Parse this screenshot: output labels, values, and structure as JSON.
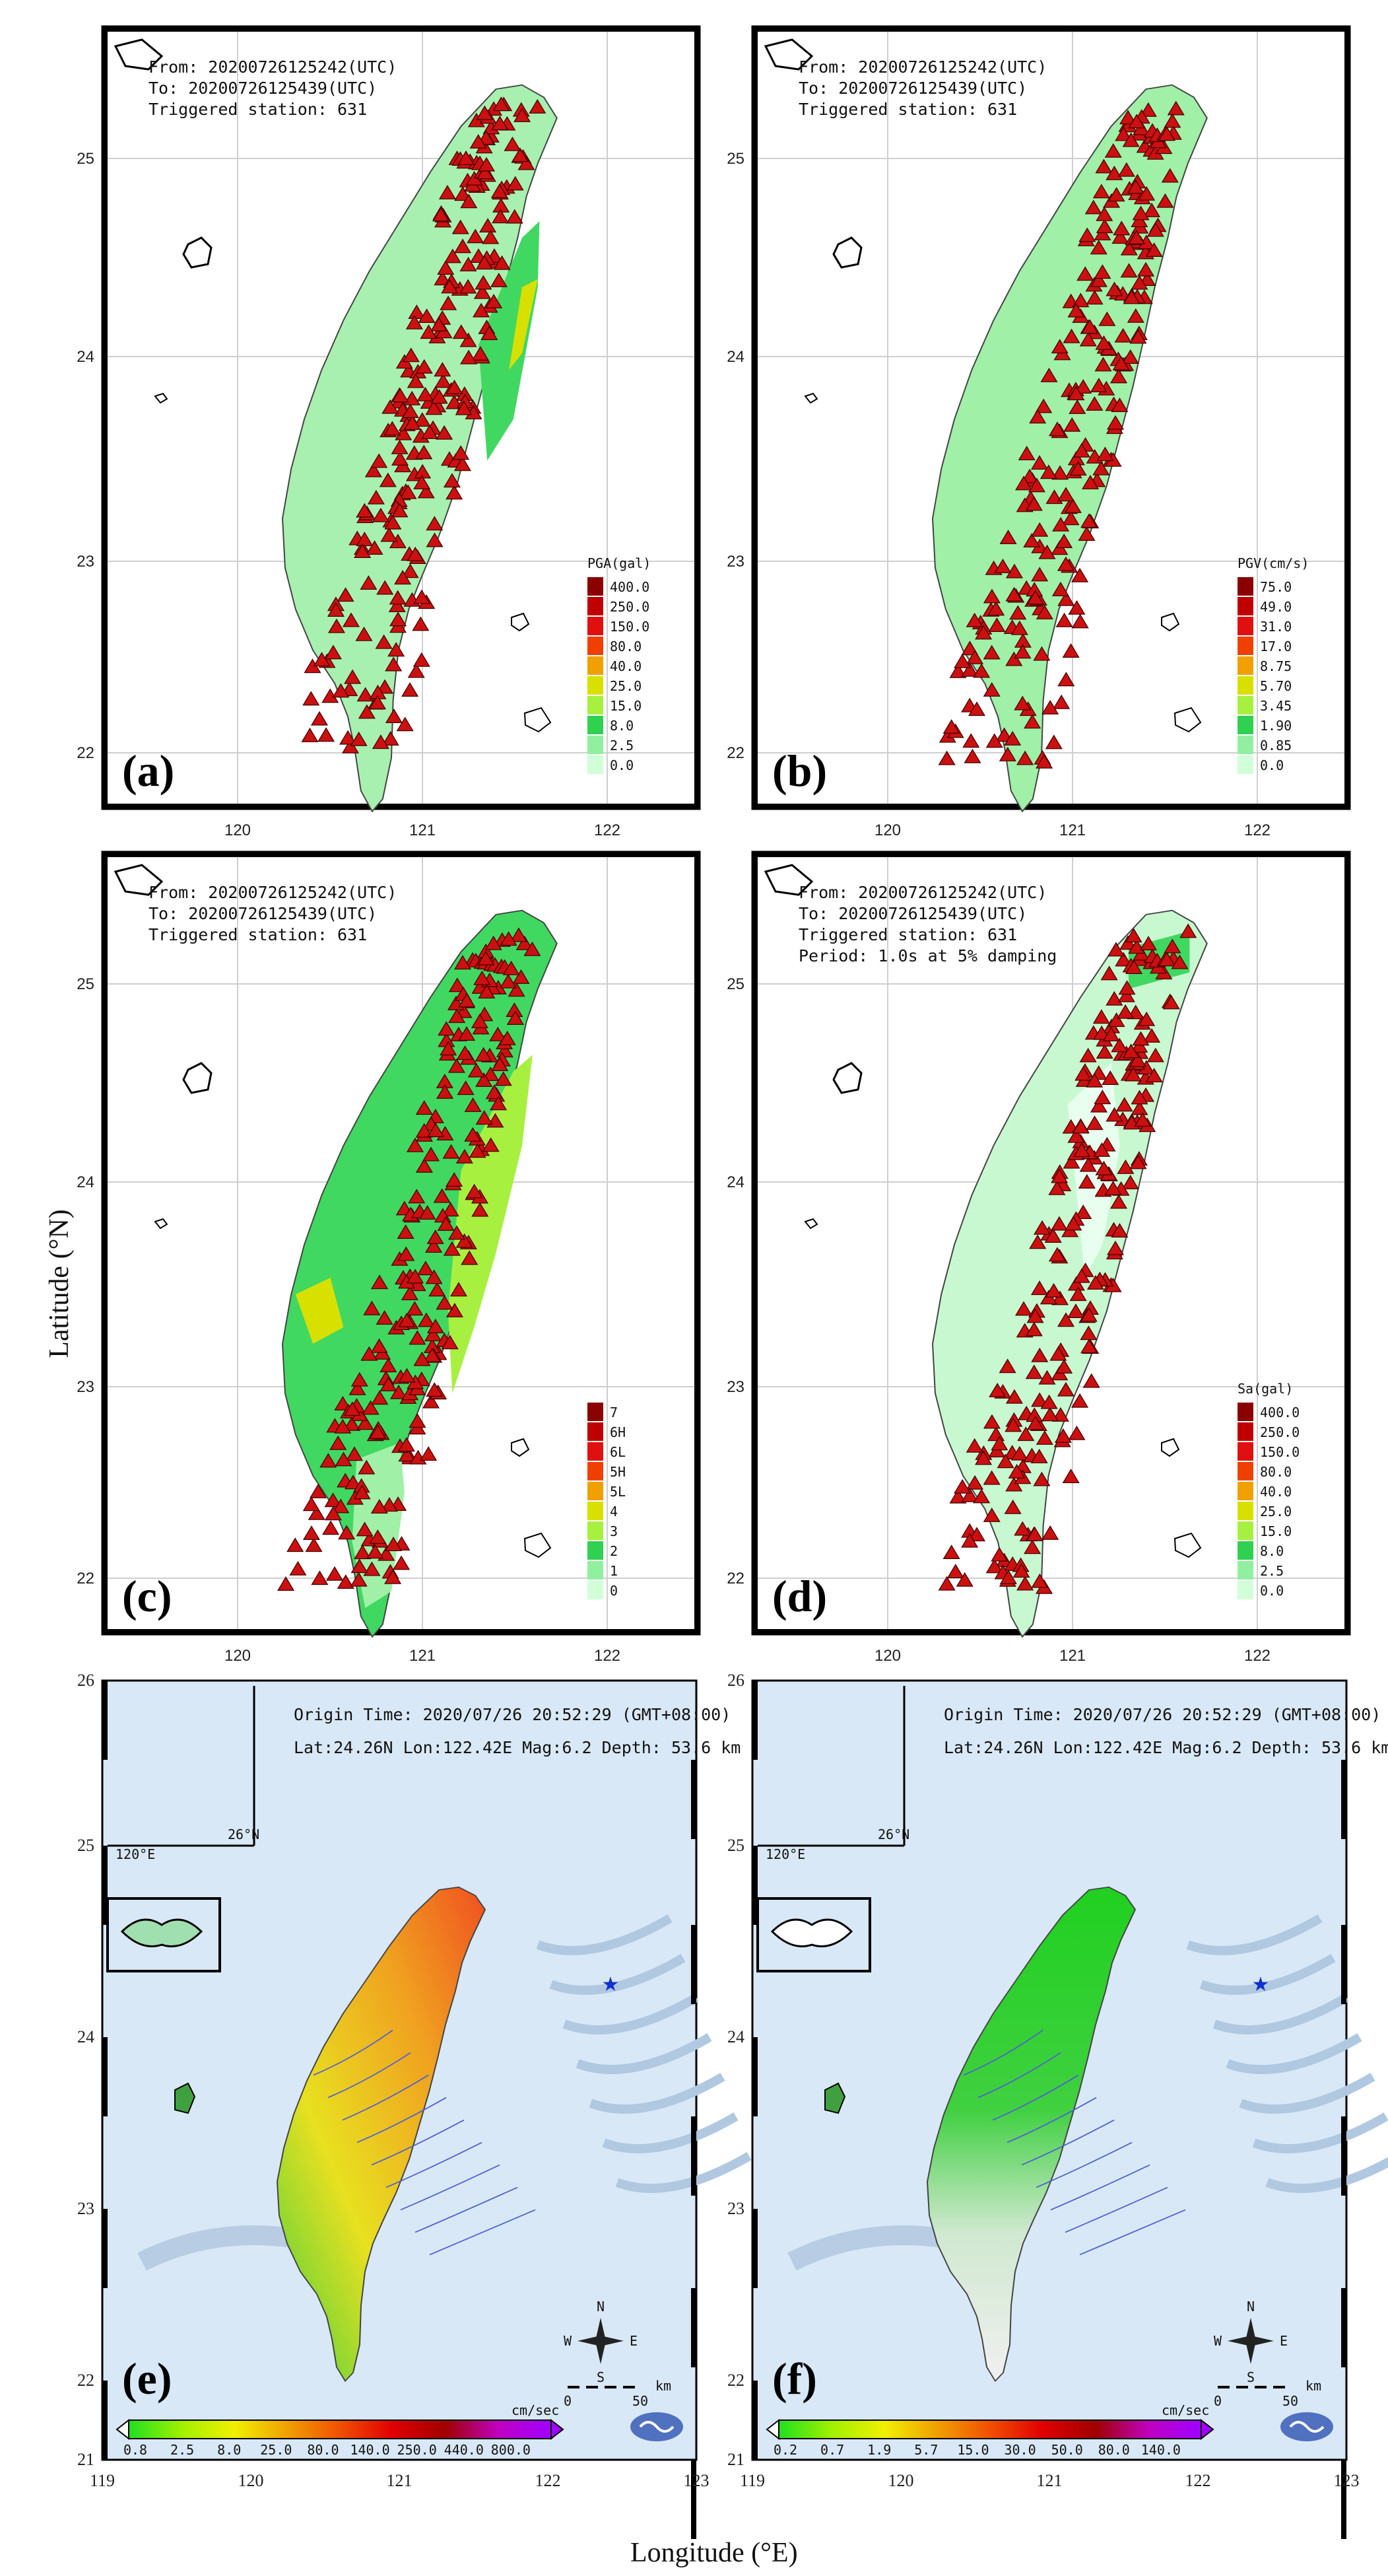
{
  "axes": {
    "ylabel": "Latitude (°N)",
    "xlabel": "Longitude (°E)"
  },
  "top_panels": {
    "lat_ticks": [
      "25",
      "24",
      "23",
      "22"
    ],
    "lon_ticks": [
      "120",
      "121",
      "122"
    ],
    "from_line": "From: 20200726125242(UTC)",
    "to_line": "To:   20200726125439(UTC)",
    "station_line": "Triggered station: 631",
    "period_line": "Period: 1.0s at 5% damping"
  },
  "panels": [
    {
      "label": "(a)",
      "legend_title": "PGA(gal)",
      "legend": [
        "400.0",
        "250.0",
        "150.0",
        "80.0",
        "40.0",
        "25.0",
        "15.0",
        "8.0",
        "2.5",
        "0.0"
      ]
    },
    {
      "label": "(b)",
      "legend_title": "PGV(cm/s)",
      "legend": [
        "75.0",
        "49.0",
        "31.0",
        "17.0",
        "8.75",
        "5.70",
        "3.45",
        "1.90",
        "0.85",
        "0.0"
      ]
    },
    {
      "label": "(c)",
      "legend_title": "",
      "legend": [
        "7",
        "6H",
        "6L",
        "5H",
        "5L",
        "4",
        "3",
        "2",
        "1",
        "0"
      ]
    },
    {
      "label": "(d)",
      "legend_title": "Sa(gal)",
      "legend": [
        "400.0",
        "250.0",
        "150.0",
        "80.0",
        "40.0",
        "25.0",
        "15.0",
        "8.0",
        "2.5",
        "0.0"
      ]
    },
    {
      "label": "(e)",
      "colorbar_unit": "cm/sec",
      "colorbar": [
        "0.8",
        "2.5",
        "8.0",
        "25.0",
        "80.0",
        "140.0",
        "250.0",
        "440.0",
        "800.0"
      ]
    },
    {
      "label": "(f)",
      "colorbar_unit": "cm/sec",
      "colorbar": [
        "0.2",
        "0.7",
        "1.9",
        "5.7",
        "15.0",
        "30.0",
        "50.0",
        "80.0",
        "140.0"
      ]
    }
  ],
  "bottom_panels": {
    "origin_time": "Origin Time: 2020/07/26  20:52:29  (GMT+08:00)",
    "location": "Lat:24.26N  Lon:122.42E  Mag:6.2  Depth: 53.6 km",
    "lat_ticks": [
      "26",
      "25",
      "24",
      "23",
      "22",
      "21"
    ],
    "lon_ticks": [
      "119",
      "120",
      "121",
      "122",
      "123"
    ],
    "inset_lat": "26°N",
    "inset_lon": "120°E",
    "scale_zero": "0",
    "scale_fifty": "50",
    "scale_unit": "km",
    "compass": {
      "n": "N",
      "s": "S",
      "e": "E",
      "w": "W"
    }
  },
  "colors": {
    "level_colors": [
      "#8b0000",
      "#c00000",
      "#e01010",
      "#f04000",
      "#f0a000",
      "#d8e000",
      "#a8f040",
      "#30d050",
      "#90f0a0",
      "#d0ffd8"
    ],
    "colorbar_e": [
      "#20e020",
      "#a0f000",
      "#f0f000",
      "#f0a000",
      "#f05000",
      "#e00000",
      "#a00000",
      "#c000c0",
      "#a000ff"
    ],
    "sea": "#d8e8f6",
    "epicenter": "#1030d0"
  }
}
